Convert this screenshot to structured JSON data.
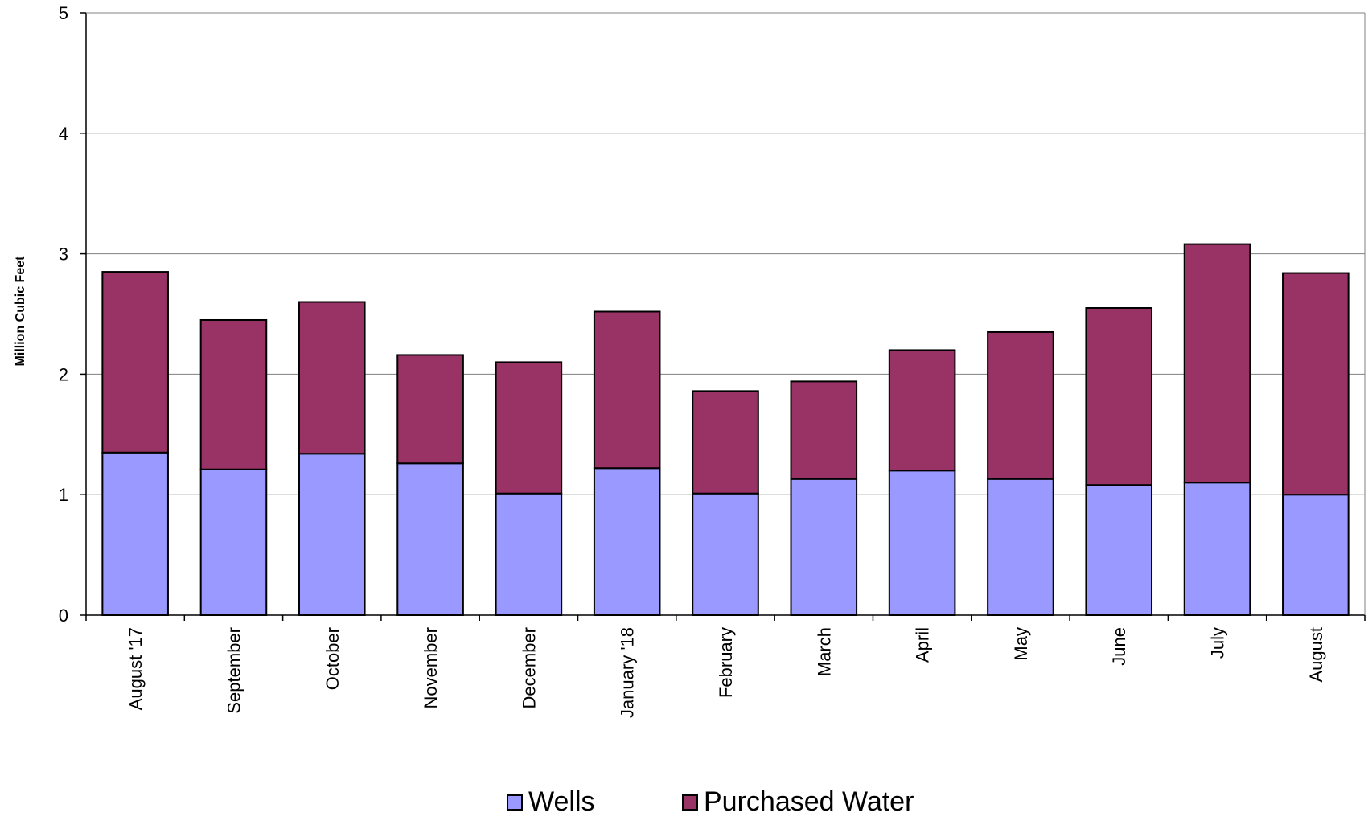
{
  "chart_data": {
    "type": "bar",
    "stacked": true,
    "categories": [
      "August '17",
      "September",
      "October",
      "November",
      "December",
      "January '18",
      "February",
      "March",
      "April",
      "May",
      "June",
      "July",
      "August"
    ],
    "series": [
      {
        "name": "Wells",
        "color": "#9999ff",
        "values": [
          1.35,
          1.21,
          1.34,
          1.26,
          1.01,
          1.22,
          1.01,
          1.13,
          1.2,
          1.13,
          1.08,
          1.1,
          1.0
        ]
      },
      {
        "name": "Purchased Water",
        "color": "#993366",
        "values": [
          1.5,
          1.24,
          1.26,
          0.9,
          1.09,
          1.3,
          0.85,
          0.81,
          1.0,
          1.22,
          1.47,
          1.98,
          1.84
        ]
      }
    ],
    "ylabel": "Million Cubic Feet",
    "ylim": [
      0,
      5
    ],
    "yticks": [
      0,
      1,
      2,
      3,
      4,
      5
    ],
    "grid": true,
    "legend": "bottom"
  }
}
